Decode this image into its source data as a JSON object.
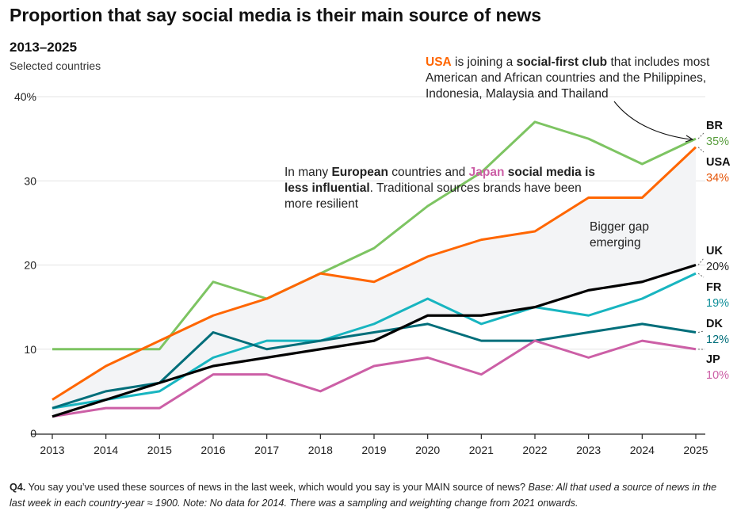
{
  "title": "Proportion that say social media is their main source of news",
  "subtitle": "2013–2025",
  "subsubtitle": "Selected countries",
  "annotations": {
    "usa": [
      {
        "text": "USA",
        "bold": true,
        "color": "#ff6600"
      },
      {
        "text": " is joining a "
      },
      {
        "text": "social-first club",
        "bold": true
      },
      {
        "text": " that includes most American and African countries and the Philippines, Indonesia, Malaysia and Thailand"
      }
    ],
    "europe": [
      {
        "text": "In many "
      },
      {
        "text": "European",
        "bold": true
      },
      {
        "text": " countries and "
      },
      {
        "text": "Japan",
        "bold": true,
        "color": "#cc5fa6"
      },
      {
        "text": " social media is less influential",
        "bold": true
      },
      {
        "text": ". Traditional sources brands have been more resilient"
      }
    ],
    "gap": "Bigger gap emerging"
  },
  "footnote": {
    "q": "Q4.",
    "text": " You say you’ve used these sources of news in the last week, which would you say is your MAIN source of news? ",
    "italic": "Base: All that used a source of news in the last week in each country-year ≈ 1900. Note: No data for 2014. There was a sampling and weighting change from 2021 onwards."
  },
  "chart_data": {
    "type": "line",
    "x": [
      2013,
      2014,
      2015,
      2016,
      2017,
      2018,
      2019,
      2020,
      2021,
      2022,
      2023,
      2024,
      2025
    ],
    "ylim": [
      0,
      40
    ],
    "yticks": [
      0,
      10,
      20,
      30,
      40
    ],
    "ytick_labels": [
      "0",
      "10",
      "20",
      "30",
      "40%"
    ],
    "grid": true,
    "shaded_between": [
      "USA",
      "UK"
    ],
    "series": [
      {
        "name": "BR",
        "end_label": "35%",
        "color": "#7dc462",
        "label_color": "#5a9e3f",
        "values": [
          10,
          10,
          10,
          18,
          16,
          19,
          22,
          27,
          31,
          37,
          35,
          32,
          35
        ]
      },
      {
        "name": "USA",
        "end_label": "34%",
        "color": "#ff6600",
        "label_color": "#e5560a",
        "values": [
          4,
          8,
          11,
          14,
          16,
          19,
          18,
          21,
          23,
          24,
          28,
          28,
          34
        ]
      },
      {
        "name": "UK",
        "end_label": "20%",
        "color": "#000000",
        "label_color": "#222222",
        "values": [
          2,
          4,
          6,
          8,
          9,
          10,
          11,
          14,
          14,
          15,
          17,
          18,
          20
        ]
      },
      {
        "name": "FR",
        "end_label": "19%",
        "color": "#18b5c0",
        "label_color": "#0e8f99",
        "values": [
          3,
          4,
          5,
          9,
          11,
          11,
          13,
          16,
          13,
          15,
          14,
          16,
          19
        ]
      },
      {
        "name": "DK",
        "end_label": "12%",
        "color": "#006e7a",
        "label_color": "#006e7a",
        "values": [
          3,
          5,
          6,
          12,
          10,
          11,
          12,
          13,
          11,
          11,
          12,
          13,
          12
        ]
      },
      {
        "name": "JP",
        "end_label": "10%",
        "color": "#cc5fa6",
        "label_color": "#cc5fa6",
        "values": [
          2,
          3,
          3,
          7,
          7,
          5,
          8,
          9,
          7,
          11,
          9,
          11,
          10
        ]
      }
    ]
  }
}
